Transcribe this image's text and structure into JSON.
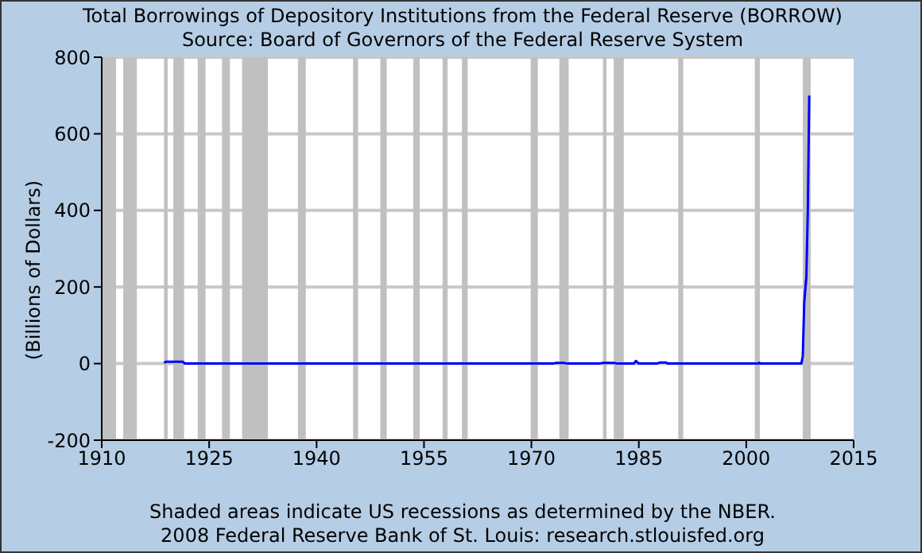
{
  "chart_data": {
    "type": "line",
    "title": "Total Borrowings of Depository Institutions from the Federal Reserve (BORROW)",
    "subtitle": "Source: Board of Governors of the Federal Reserve System",
    "ylabel": "(Billions of Dollars)",
    "annotations": [
      "Shaded areas indicate US recessions as determined by the NBER.",
      "2008 Federal Reserve Bank of St. Louis: research.stlouisfed.org"
    ],
    "xlim": [
      1910,
      2015
    ],
    "xticks": [
      1910,
      1925,
      1940,
      1955,
      1970,
      1985,
      2000,
      2015
    ],
    "ylim": [
      -200,
      800
    ],
    "yticks": [
      -200,
      0,
      200,
      400,
      600,
      800
    ],
    "grid": "y",
    "marker": "none",
    "line_style": "solid",
    "series": [
      {
        "color": "#0000ff",
        "x": [
          1918.7,
          1919.0,
          1921.3,
          1921.6,
          1973.0,
          1973.5,
          1974.5,
          1975.0,
          1979.5,
          1980.0,
          1981.5,
          1982.0,
          1984.3,
          1984.6,
          1985.0,
          1987.5,
          1988.0,
          1988.8,
          1989.0,
          2001.7,
          2001.8,
          2002.0,
          2007.7,
          2007.9,
          2008.1,
          2008.4,
          2008.6,
          2008.8
        ],
        "values": [
          2,
          5,
          5,
          0,
          0,
          2,
          2,
          0,
          0,
          2,
          2,
          0,
          0,
          7,
          0,
          0,
          3,
          3,
          0,
          0,
          2,
          0,
          0,
          20,
          160,
          227,
          400,
          700
        ]
      }
    ],
    "bands": [
      {
        "axis": "x",
        "from": 1910.0,
        "to": 1912.0,
        "color": "#c0c0c0"
      },
      {
        "axis": "x",
        "from": 1913.0,
        "to": 1914.9,
        "color": "#c0c0c0"
      },
      {
        "axis": "x",
        "from": 1918.7,
        "to": 1919.2,
        "color": "#c0c0c0"
      },
      {
        "axis": "x",
        "from": 1920.0,
        "to": 1921.5,
        "color": "#c0c0c0"
      },
      {
        "axis": "x",
        "from": 1923.4,
        "to": 1924.5,
        "color": "#c0c0c0"
      },
      {
        "axis": "x",
        "from": 1926.8,
        "to": 1927.9,
        "color": "#c0c0c0"
      },
      {
        "axis": "x",
        "from": 1929.6,
        "to": 1933.2,
        "color": "#c0c0c0"
      },
      {
        "axis": "x",
        "from": 1937.4,
        "to": 1938.5,
        "color": "#c0c0c0"
      },
      {
        "axis": "x",
        "from": 1945.1,
        "to": 1945.8,
        "color": "#c0c0c0"
      },
      {
        "axis": "x",
        "from": 1948.9,
        "to": 1949.8,
        "color": "#c0c0c0"
      },
      {
        "axis": "x",
        "from": 1953.5,
        "to": 1954.4,
        "color": "#c0c0c0"
      },
      {
        "axis": "x",
        "from": 1957.6,
        "to": 1958.3,
        "color": "#c0c0c0"
      },
      {
        "axis": "x",
        "from": 1960.3,
        "to": 1961.1,
        "color": "#c0c0c0"
      },
      {
        "axis": "x",
        "from": 1969.9,
        "to": 1970.9,
        "color": "#c0c0c0"
      },
      {
        "axis": "x",
        "from": 1973.9,
        "to": 1975.2,
        "color": "#c0c0c0"
      },
      {
        "axis": "x",
        "from": 1980.0,
        "to": 1980.5,
        "color": "#c0c0c0"
      },
      {
        "axis": "x",
        "from": 1981.5,
        "to": 1982.9,
        "color": "#c0c0c0"
      },
      {
        "axis": "x",
        "from": 1990.5,
        "to": 1991.2,
        "color": "#c0c0c0"
      },
      {
        "axis": "x",
        "from": 2001.2,
        "to": 2001.9,
        "color": "#c0c0c0"
      },
      {
        "axis": "x",
        "from": 2007.9,
        "to": 2009.0,
        "color": "#c0c0c0"
      }
    ]
  }
}
